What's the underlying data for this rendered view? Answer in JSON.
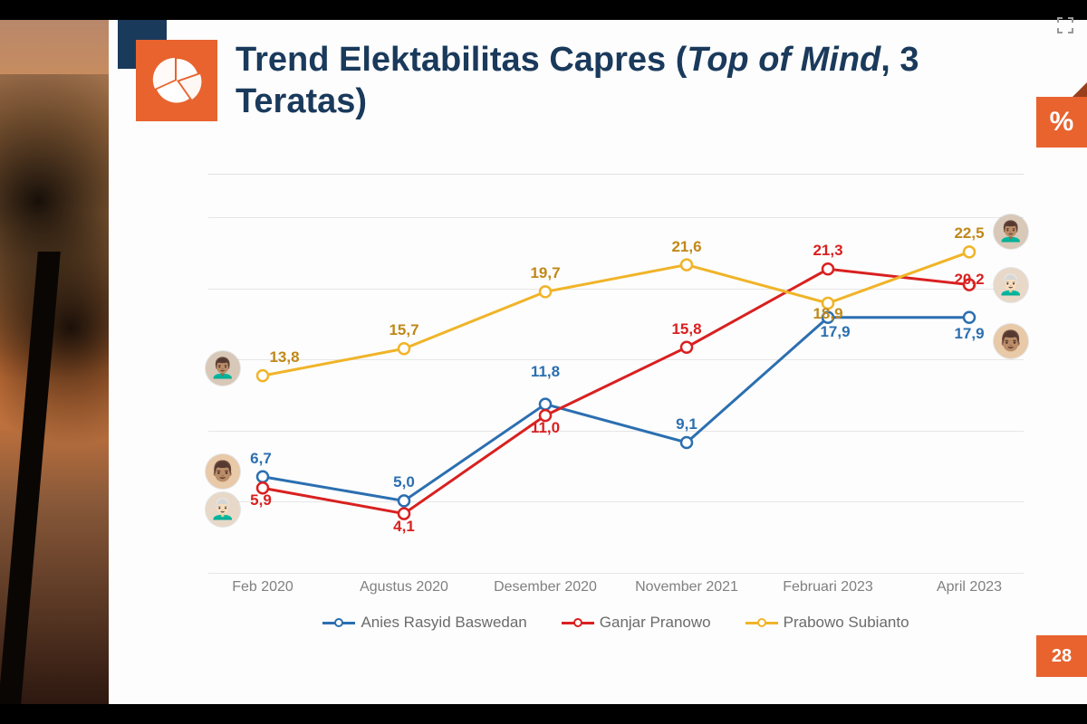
{
  "title_part1": "Trend Elektabilitas Capres (",
  "title_italic": "Top of Mind",
  "title_part2": ", 3 Teratas)",
  "title_fontsize": 38,
  "title_color": "#1a3a5c",
  "percent_symbol": "%",
  "page_number": "28",
  "chart": {
    "type": "line",
    "categories": [
      "Feb 2020",
      "Agustus 2020",
      "Desember 2020",
      "November 2021",
      "Februari 2023",
      "April 2023"
    ],
    "ylim": [
      0,
      28
    ],
    "grid_y_values": [
      0,
      5,
      10,
      15,
      20,
      25
    ],
    "grid_color": "#e6e6e6",
    "xlabel_color": "#808080",
    "xlabel_fontsize": 16,
    "data_label_fontsize": 17,
    "line_width": 3,
    "marker_radius": 6,
    "marker_fill": "#ffffff",
    "marker_stroke_width": 2.5,
    "series": [
      {
        "name": "Anies Rasyid Baswedan",
        "color": "#2b6fb0",
        "label_color": "#2b6fb0",
        "values": [
          6.7,
          5.0,
          11.8,
          9.1,
          17.9,
          17.9
        ],
        "display_labels": [
          "6,7",
          "5,0",
          "11,8",
          "9,1",
          "17,9",
          "17,9"
        ],
        "avatar_bg": "#e8c9a8",
        "avatar_emoji": "👨🏽"
      },
      {
        "name": "Ganjar Pranowo",
        "color": "#d92020",
        "label_color": "#d92020",
        "values": [
          5.9,
          4.1,
          11.0,
          15.8,
          21.3,
          20.2
        ],
        "display_labels": [
          "5,9",
          "4,1",
          "11,0",
          "15,8",
          "21,3",
          "20,2"
        ],
        "avatar_bg": "#e8d8c8",
        "avatar_emoji": "👨🏻‍🦳"
      },
      {
        "name": "Prabowo Subianto",
        "color": "#f0b428",
        "label_color": "#c08818",
        "values": [
          13.8,
          15.7,
          19.7,
          21.6,
          18.9,
          22.5
        ],
        "display_labels": [
          "13,8",
          "15,7",
          "19,7",
          "21,6",
          "18,9",
          "22,5"
        ],
        "avatar_bg": "#d8c8b8",
        "avatar_emoji": "👨🏽‍🦱"
      }
    ],
    "start_avatars": [
      {
        "series": 2,
        "y": 13.8,
        "offset_y": -8
      },
      {
        "series": 0,
        "y": 6.7,
        "offset_y": -6
      },
      {
        "series": 1,
        "y": 5.9,
        "offset_y": 24
      }
    ],
    "end_avatars": [
      {
        "series": 2,
        "y": 22.5,
        "offset_y": -22
      },
      {
        "series": 1,
        "y": 20.2,
        "offset_y": 0
      },
      {
        "series": 0,
        "y": 17.9,
        "offset_y": 26
      }
    ]
  },
  "colors": {
    "accent_orange": "#e8632e",
    "accent_blue": "#1a3a5c",
    "slide_bg": "#fdfdfd"
  }
}
